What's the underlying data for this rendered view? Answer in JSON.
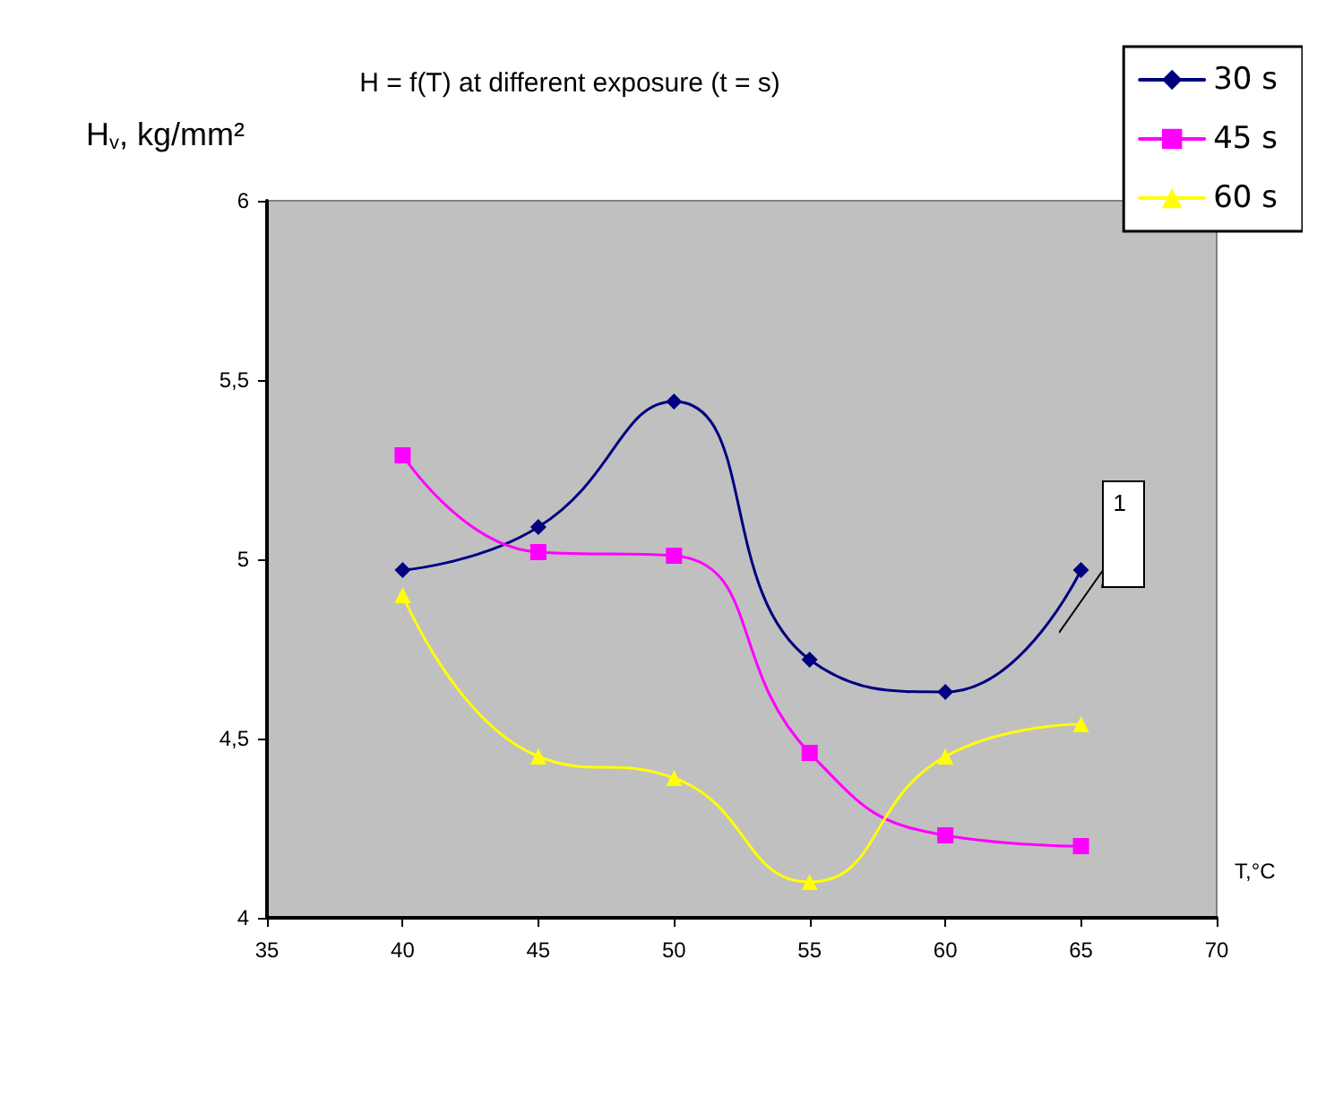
{
  "chart_data": {
    "type": "line",
    "title": "H = f(T) at different exposure (t = s)",
    "ylabel": "H$_{v}$, kg/mm²",
    "xlabel": "T,°C",
    "x": [
      40,
      45,
      50,
      55,
      60,
      65
    ],
    "series": [
      {
        "name": "30 s",
        "color": "#000080",
        "marker": "diamond",
        "values": [
          4.97,
          5.09,
          5.44,
          4.72,
          4.63,
          4.97
        ]
      },
      {
        "name": "45 s",
        "color": "#ff00ff",
        "marker": "square",
        "values": [
          5.29,
          5.02,
          5.01,
          4.46,
          4.23,
          4.2
        ]
      },
      {
        "name": "60 s",
        "color": "#ffff00",
        "marker": "triangle",
        "values": [
          4.9,
          4.45,
          4.39,
          4.1,
          4.45,
          4.54
        ]
      }
    ],
    "xlim": [
      35,
      70
    ],
    "xticks": [
      35,
      40,
      45,
      50,
      55,
      60,
      65,
      70
    ],
    "ylim": [
      4,
      6
    ],
    "yticks": [
      4,
      {
        "value": 4.5,
        "label": "4,5"
      },
      5,
      {
        "value": 5.5,
        "label": "5,5"
      },
      6
    ],
    "annotations": [
      {
        "text": "1",
        "x": 65,
        "y": 4.97
      }
    ],
    "grid": false,
    "legend": "top right",
    "line_style": "solid"
  }
}
